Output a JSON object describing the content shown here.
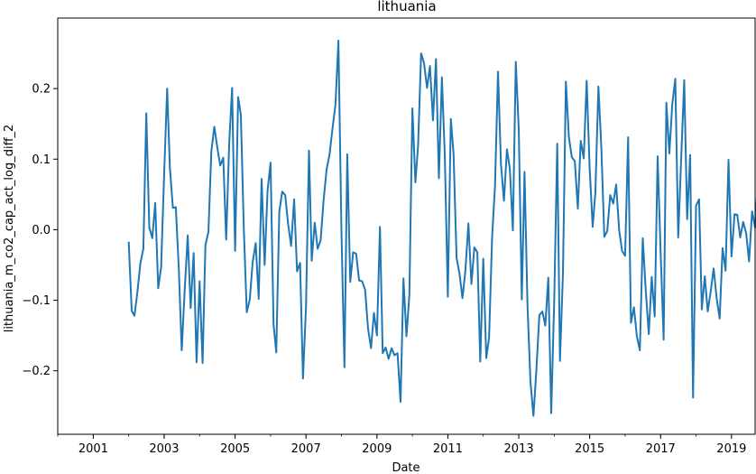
{
  "chart_data": {
    "type": "line",
    "title": "lithuania",
    "xlabel": "Date",
    "ylabel": "lithuania_m_co2_cap_act_log_diff_2",
    "xlim": [
      "2000-01-01",
      "2019-09-01"
    ],
    "ylim": [
      -0.29,
      0.3
    ],
    "grid": false,
    "legend": "none",
    "line_color": "#1f77b4",
    "x_ticks": [
      {
        "date": "2001-01-01",
        "label": "2001"
      },
      {
        "date": "2003-01-01",
        "label": "2003"
      },
      {
        "date": "2005-01-01",
        "label": "2005"
      },
      {
        "date": "2007-01-01",
        "label": "2007"
      },
      {
        "date": "2009-01-01",
        "label": "2009"
      },
      {
        "date": "2011-01-01",
        "label": "2011"
      },
      {
        "date": "2013-01-01",
        "label": "2013"
      },
      {
        "date": "2015-01-01",
        "label": "2015"
      },
      {
        "date": "2017-01-01",
        "label": "2017"
      },
      {
        "date": "2019-01-01",
        "label": "2019"
      }
    ],
    "y_ticks": [
      {
        "value": 0.2,
        "label": "0.2"
      },
      {
        "value": 0.1,
        "label": "0.1"
      },
      {
        "value": 0.0,
        "label": "0.0"
      },
      {
        "value": -0.1,
        "label": "−0.1"
      },
      {
        "value": -0.2,
        "label": "−0.2"
      }
    ],
    "series": [
      {
        "start": "2002-01",
        "values": [
          -0.017,
          -0.115,
          -0.122,
          -0.088,
          -0.048,
          -0.027,
          0.165,
          0.003,
          -0.012,
          0.038,
          -0.083,
          -0.053,
          0.079,
          0.2,
          0.088,
          0.031,
          0.032,
          -0.055,
          -0.171,
          -0.085,
          -0.008,
          -0.111,
          -0.033,
          -0.188,
          -0.073,
          -0.189,
          -0.022,
          -0.003,
          0.111,
          0.146,
          0.117,
          0.091,
          0.102,
          -0.014,
          0.122,
          0.201,
          -0.03,
          0.188,
          0.163,
          0.0,
          -0.117,
          -0.099,
          -0.046,
          -0.019,
          -0.098,
          0.072,
          -0.05,
          0.055,
          0.095,
          -0.134,
          -0.174,
          0.025,
          0.054,
          0.049,
          0.008,
          -0.023,
          0.043,
          -0.059,
          -0.047,
          -0.211,
          -0.11,
          0.112,
          -0.044,
          0.01,
          -0.027,
          -0.015,
          0.041,
          0.085,
          0.107,
          0.143,
          0.178,
          0.268,
          0.0,
          -0.195,
          0.107,
          -0.074,
          -0.032,
          -0.034,
          -0.072,
          -0.073,
          -0.085,
          -0.14,
          -0.168,
          -0.118,
          -0.15,
          0.004,
          -0.175,
          -0.167,
          -0.183,
          -0.168,
          -0.178,
          -0.175,
          -0.244,
          -0.069,
          -0.151,
          -0.092,
          0.172,
          0.067,
          0.12,
          0.25,
          0.236,
          0.201,
          0.232,
          0.155,
          0.242,
          0.073,
          0.216,
          0.105,
          -0.095,
          0.157,
          0.108,
          -0.04,
          -0.062,
          -0.097,
          -0.058,
          0.009,
          -0.077,
          -0.025,
          -0.032,
          -0.187,
          -0.041,
          -0.182,
          -0.153,
          -0.011,
          0.062,
          0.224,
          0.094,
          0.041,
          0.114,
          0.086,
          -0.001,
          0.238,
          0.141,
          -0.099,
          0.082,
          -0.109,
          -0.215,
          -0.264,
          -0.199,
          -0.121,
          -0.116,
          -0.136,
          -0.068,
          -0.26,
          -0.1,
          0.122,
          -0.186,
          -0.061,
          0.21,
          0.131,
          0.103,
          0.097,
          0.03,
          0.126,
          0.101,
          0.211,
          0.087,
          0.004,
          0.053,
          0.203,
          0.117,
          -0.01,
          -0.002,
          0.049,
          0.037,
          0.064,
          -0.001,
          -0.03,
          -0.037,
          0.131,
          -0.132,
          -0.11,
          -0.151,
          -0.171,
          -0.012,
          -0.087,
          -0.148,
          -0.067,
          -0.123,
          0.104,
          -0.032,
          -0.156,
          0.18,
          0.108,
          0.178,
          0.214,
          -0.011,
          0.102,
          0.212,
          0.015,
          0.106,
          -0.238,
          0.034,
          0.043,
          -0.113,
          -0.066,
          -0.116,
          -0.087,
          -0.055,
          -0.097,
          -0.126,
          -0.026,
          -0.058,
          0.099,
          -0.038,
          0.022,
          0.021,
          -0.011,
          0.011,
          -0.005,
          -0.045,
          0.026,
          0.003,
          0.076,
          0.035
        ]
      }
    ]
  }
}
